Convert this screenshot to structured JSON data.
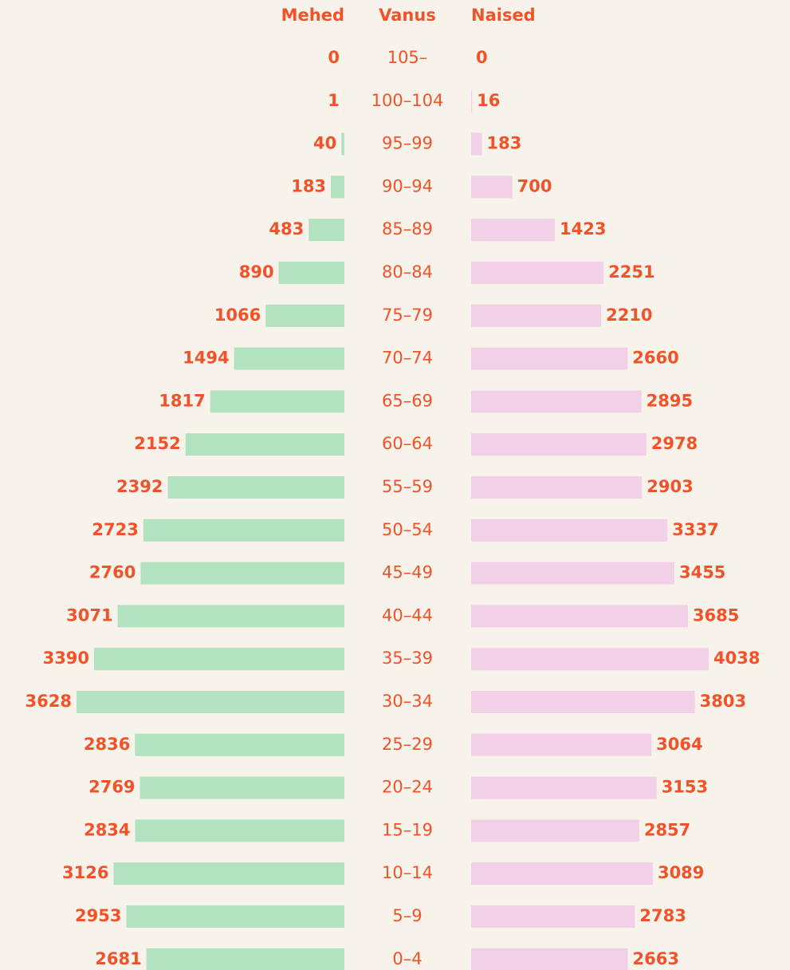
{
  "chart_data": {
    "type": "pyramid",
    "category_label": "Vanus",
    "categories": [
      "105–",
      "100–104",
      "95–99",
      "90–94",
      "85–89",
      "80–84",
      "75–79",
      "70–74",
      "65–69",
      "60–64",
      "55–59",
      "50–54",
      "45–49",
      "40–44",
      "35–39",
      "30–34",
      "25–29",
      "20–24",
      "15–19",
      "10–14",
      "5–9",
      "0–4"
    ],
    "series": [
      {
        "name": "Mehed",
        "color": "#b2e2bf",
        "values": [
          0,
          1,
          40,
          183,
          483,
          890,
          1066,
          1494,
          1817,
          2152,
          2392,
          2723,
          2760,
          3071,
          3390,
          3628,
          2836,
          2769,
          2834,
          3126,
          2953,
          2681
        ]
      },
      {
        "name": "Naised",
        "color": "#f2d0e8",
        "values": [
          0,
          16,
          183,
          700,
          1423,
          2251,
          2210,
          2660,
          2895,
          2978,
          2903,
          3337,
          3455,
          3685,
          4038,
          3803,
          3064,
          3153,
          2857,
          3089,
          2783,
          2663
        ]
      }
    ]
  }
}
